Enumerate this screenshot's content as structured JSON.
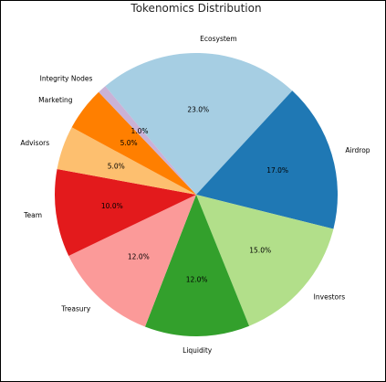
{
  "chart_data": {
    "type": "pie",
    "title": "Tokenomics Distribution",
    "start_angle_deg": 130,
    "direction": "clockwise",
    "legend": "none",
    "slices": [
      {
        "label": "Ecosystem",
        "value": 23.0,
        "pct_label": "23.0%",
        "color": "#a6cee3"
      },
      {
        "label": "Airdrop",
        "value": 17.0,
        "pct_label": "17.0%",
        "color": "#1f78b4"
      },
      {
        "label": "Investors",
        "value": 15.0,
        "pct_label": "15.0%",
        "color": "#b2df8a"
      },
      {
        "label": "Liquidity",
        "value": 12.0,
        "pct_label": "12.0%",
        "color": "#33a02c"
      },
      {
        "label": "Treasury",
        "value": 12.0,
        "pct_label": "12.0%",
        "color": "#fb9a99"
      },
      {
        "label": "Team",
        "value": 10.0,
        "pct_label": "10.0%",
        "color": "#e31a1c"
      },
      {
        "label": "Advisors",
        "value": 5.0,
        "pct_label": "5.0%",
        "color": "#fdbf6f"
      },
      {
        "label": "Marketing",
        "value": 5.0,
        "pct_label": "5.0%",
        "color": "#ff7f00"
      },
      {
        "label": "Integrity Nodes",
        "value": 1.0,
        "pct_label": "1.0%",
        "color": "#cab2d6"
      }
    ]
  }
}
